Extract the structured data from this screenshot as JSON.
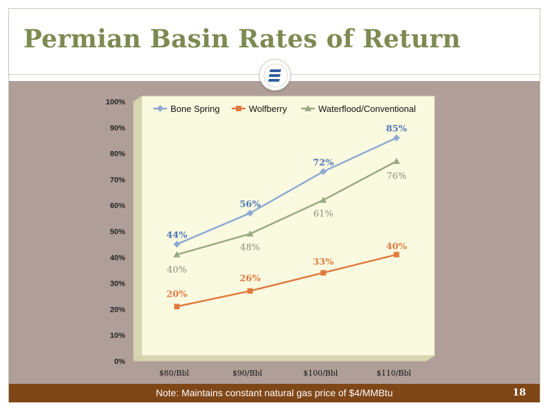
{
  "slide": {
    "title": "Permian Basin Rates of Return",
    "note": "Note:  Maintains constant natural gas price of $4/MMBtu",
    "page_number": "18",
    "logo_icon": "company-logo-icon"
  },
  "colors": {
    "title": "#7d8a51",
    "content_bg": "#b09e98",
    "footer_bg": "#7f4617",
    "plot_bg": "#fafae0",
    "bone_spring": "#8eaad4",
    "bone_spring_label": "#4e78b4",
    "wolfberry": "#e07a3f",
    "waterflood": "#9aa882",
    "waterflood_label": "#8c8c76"
  },
  "chart_data": {
    "type": "line",
    "categories": [
      "$80/Bbl",
      "$90/Bbl",
      "$100/Bbl",
      "$110/Bbl"
    ],
    "series": [
      {
        "name": "Bone Spring",
        "values": [
          44,
          56,
          72,
          85
        ],
        "labels": [
          "44%",
          "56%",
          "72%",
          "85%"
        ],
        "marker": "diamond"
      },
      {
        "name": "Wolfberry",
        "values": [
          20,
          26,
          33,
          40
        ],
        "labels": [
          "20%",
          "26%",
          "33%",
          "40%"
        ],
        "marker": "square"
      },
      {
        "name": "Waterflood/Conventional",
        "values": [
          40,
          48,
          61,
          76
        ],
        "labels": [
          "40%",
          "48%",
          "61%",
          "76%"
        ],
        "marker": "triangle"
      }
    ],
    "yticks": [
      "0%",
      "10%",
      "20%",
      "30%",
      "40%",
      "50%",
      "60%",
      "70%",
      "80%",
      "90%",
      "100%"
    ],
    "ylim": [
      0,
      100
    ],
    "grid": false,
    "legend_position": "top"
  }
}
